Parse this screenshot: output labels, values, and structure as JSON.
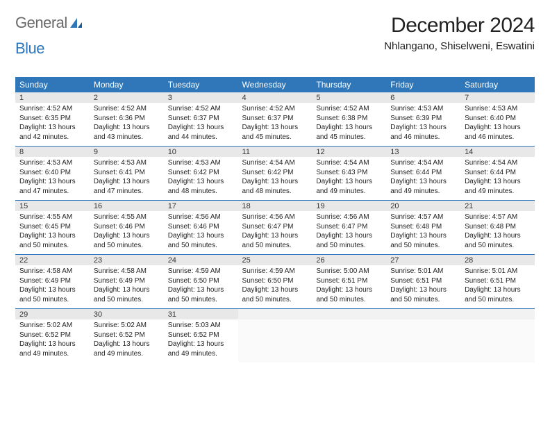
{
  "logo": {
    "word1": "General",
    "word2": "Blue"
  },
  "title": "December 2024",
  "location": "Nhlangano, Shiselweni, Eswatini",
  "colors": {
    "header_bg": "#2f77b8",
    "header_text": "#ffffff",
    "daynum_bg": "#e8e8e8",
    "rule": "#2f77b8",
    "logo_blue": "#2f77b8",
    "logo_gray": "#6a6a6a"
  },
  "calendar": {
    "day_headers": [
      "Sunday",
      "Monday",
      "Tuesday",
      "Wednesday",
      "Thursday",
      "Friday",
      "Saturday"
    ],
    "weeks": [
      [
        {
          "num": "1",
          "sunrise": "4:52 AM",
          "sunset": "6:35 PM",
          "daylight": "13 hours and 42 minutes."
        },
        {
          "num": "2",
          "sunrise": "4:52 AM",
          "sunset": "6:36 PM",
          "daylight": "13 hours and 43 minutes."
        },
        {
          "num": "3",
          "sunrise": "4:52 AM",
          "sunset": "6:37 PM",
          "daylight": "13 hours and 44 minutes."
        },
        {
          "num": "4",
          "sunrise": "4:52 AM",
          "sunset": "6:37 PM",
          "daylight": "13 hours and 45 minutes."
        },
        {
          "num": "5",
          "sunrise": "4:52 AM",
          "sunset": "6:38 PM",
          "daylight": "13 hours and 45 minutes."
        },
        {
          "num": "6",
          "sunrise": "4:53 AM",
          "sunset": "6:39 PM",
          "daylight": "13 hours and 46 minutes."
        },
        {
          "num": "7",
          "sunrise": "4:53 AM",
          "sunset": "6:40 PM",
          "daylight": "13 hours and 46 minutes."
        }
      ],
      [
        {
          "num": "8",
          "sunrise": "4:53 AM",
          "sunset": "6:40 PM",
          "daylight": "13 hours and 47 minutes."
        },
        {
          "num": "9",
          "sunrise": "4:53 AM",
          "sunset": "6:41 PM",
          "daylight": "13 hours and 47 minutes."
        },
        {
          "num": "10",
          "sunrise": "4:53 AM",
          "sunset": "6:42 PM",
          "daylight": "13 hours and 48 minutes."
        },
        {
          "num": "11",
          "sunrise": "4:54 AM",
          "sunset": "6:42 PM",
          "daylight": "13 hours and 48 minutes."
        },
        {
          "num": "12",
          "sunrise": "4:54 AM",
          "sunset": "6:43 PM",
          "daylight": "13 hours and 49 minutes."
        },
        {
          "num": "13",
          "sunrise": "4:54 AM",
          "sunset": "6:44 PM",
          "daylight": "13 hours and 49 minutes."
        },
        {
          "num": "14",
          "sunrise": "4:54 AM",
          "sunset": "6:44 PM",
          "daylight": "13 hours and 49 minutes."
        }
      ],
      [
        {
          "num": "15",
          "sunrise": "4:55 AM",
          "sunset": "6:45 PM",
          "daylight": "13 hours and 50 minutes."
        },
        {
          "num": "16",
          "sunrise": "4:55 AM",
          "sunset": "6:46 PM",
          "daylight": "13 hours and 50 minutes."
        },
        {
          "num": "17",
          "sunrise": "4:56 AM",
          "sunset": "6:46 PM",
          "daylight": "13 hours and 50 minutes."
        },
        {
          "num": "18",
          "sunrise": "4:56 AM",
          "sunset": "6:47 PM",
          "daylight": "13 hours and 50 minutes."
        },
        {
          "num": "19",
          "sunrise": "4:56 AM",
          "sunset": "6:47 PM",
          "daylight": "13 hours and 50 minutes."
        },
        {
          "num": "20",
          "sunrise": "4:57 AM",
          "sunset": "6:48 PM",
          "daylight": "13 hours and 50 minutes."
        },
        {
          "num": "21",
          "sunrise": "4:57 AM",
          "sunset": "6:48 PM",
          "daylight": "13 hours and 50 minutes."
        }
      ],
      [
        {
          "num": "22",
          "sunrise": "4:58 AM",
          "sunset": "6:49 PM",
          "daylight": "13 hours and 50 minutes."
        },
        {
          "num": "23",
          "sunrise": "4:58 AM",
          "sunset": "6:49 PM",
          "daylight": "13 hours and 50 minutes."
        },
        {
          "num": "24",
          "sunrise": "4:59 AM",
          "sunset": "6:50 PM",
          "daylight": "13 hours and 50 minutes."
        },
        {
          "num": "25",
          "sunrise": "4:59 AM",
          "sunset": "6:50 PM",
          "daylight": "13 hours and 50 minutes."
        },
        {
          "num": "26",
          "sunrise": "5:00 AM",
          "sunset": "6:51 PM",
          "daylight": "13 hours and 50 minutes."
        },
        {
          "num": "27",
          "sunrise": "5:01 AM",
          "sunset": "6:51 PM",
          "daylight": "13 hours and 50 minutes."
        },
        {
          "num": "28",
          "sunrise": "5:01 AM",
          "sunset": "6:51 PM",
          "daylight": "13 hours and 50 minutes."
        }
      ],
      [
        {
          "num": "29",
          "sunrise": "5:02 AM",
          "sunset": "6:52 PM",
          "daylight": "13 hours and 49 minutes."
        },
        {
          "num": "30",
          "sunrise": "5:02 AM",
          "sunset": "6:52 PM",
          "daylight": "13 hours and 49 minutes."
        },
        {
          "num": "31",
          "sunrise": "5:03 AM",
          "sunset": "6:52 PM",
          "daylight": "13 hours and 49 minutes."
        },
        null,
        null,
        null,
        null
      ]
    ]
  },
  "labels": {
    "sunrise": "Sunrise:",
    "sunset": "Sunset:",
    "daylight": "Daylight:"
  }
}
